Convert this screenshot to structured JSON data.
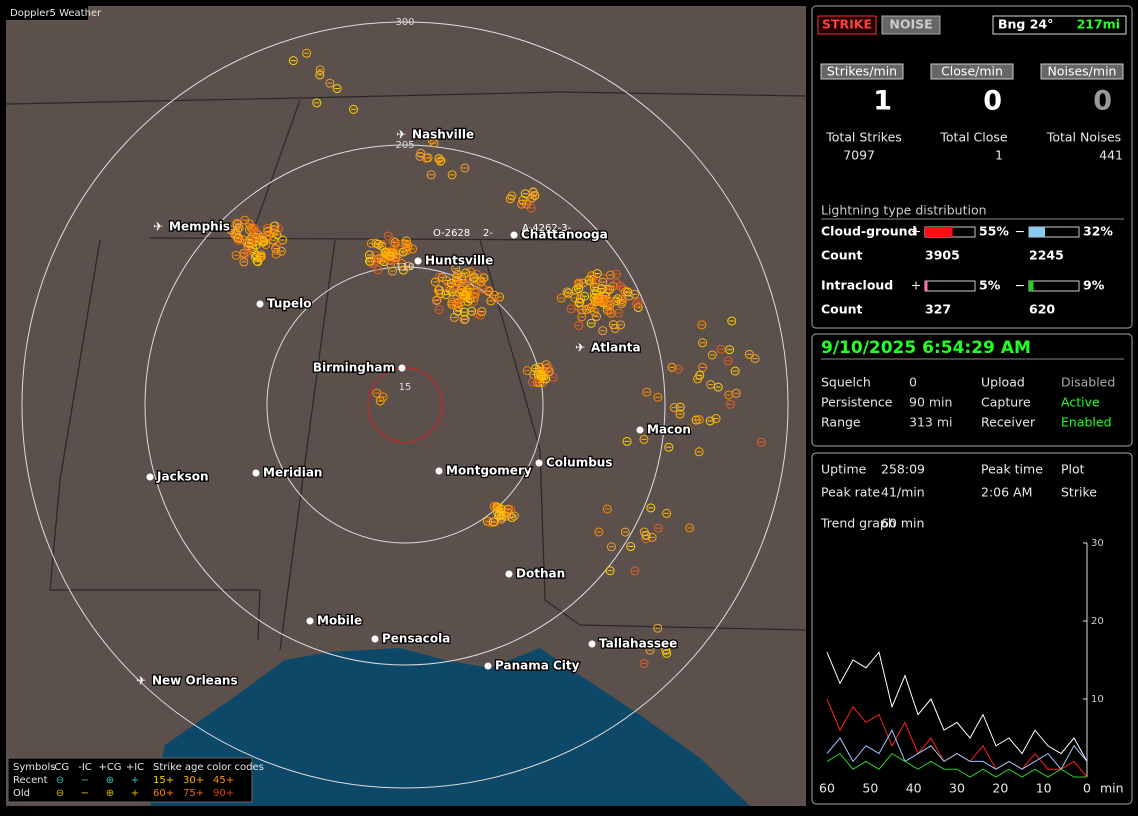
{
  "map": {
    "title": "Doppler5 Weather",
    "range_labels": [
      "300",
      "205",
      "110",
      "15"
    ],
    "cities": [
      "Nashville",
      "Memphis",
      "Chattanooga",
      "Huntsville",
      "Tupelo",
      "Atlanta",
      "Birmingham",
      "Macon",
      "Jackson",
      "Meridian",
      "Montgomery",
      "Columbus",
      "Dothan",
      "Mobile",
      "Pensacola",
      "Tallahassee",
      "Panama City",
      "New Orleans"
    ],
    "tags": [
      "O-2628",
      "2-",
      "A-4262-3-"
    ]
  },
  "legend": {
    "symbols": "Symbols",
    "types": [
      "-CG",
      "-IC",
      "+CG",
      "+IC"
    ],
    "age_title": "Strike age color codes",
    "rows": [
      "Recent",
      "Old"
    ],
    "ages": [
      [
        "15+",
        "30+",
        "45+"
      ],
      [
        "60+",
        "75+",
        "90+"
      ]
    ]
  },
  "status": {
    "modes": [
      "STRIKE",
      "NOISE"
    ],
    "bearing": "Bng 24°",
    "distance": "217mi",
    "rates": [
      {
        "label": "Strikes/min",
        "value": 1
      },
      {
        "label": "Close/min",
        "value": 0
      },
      {
        "label": "Noises/min",
        "value": 0
      }
    ],
    "totals": [
      {
        "label": "Total Strikes",
        "value": 7097
      },
      {
        "label": "Total Close",
        "value": 1
      },
      {
        "label": "Total Noises",
        "value": 441
      }
    ],
    "distribution": {
      "title": "Lightning type distribution",
      "count_label": "Count",
      "rows": [
        {
          "name": "Cloud-ground",
          "pos": {
            "sign": "+",
            "color": "#ff1010",
            "percent": {
              "value": 55,
              "label": "55%"
            },
            "count": 3905
          },
          "neg": {
            "sign": "−",
            "color": "#8ccaf0",
            "percent": {
              "value": 32,
              "label": "32%"
            },
            "count": 2245
          }
        },
        {
          "name": "Intracloud",
          "pos": {
            "sign": "+",
            "color": "#ff70b0",
            "percent": {
              "value": 5,
              "label": "5%"
            },
            "count": 327
          },
          "neg": {
            "sign": "−",
            "color": "#20d020",
            "percent": {
              "value": 9,
              "label": "9%"
            },
            "count": 620
          }
        }
      ]
    }
  },
  "settings": {
    "datetime": "9/10/2025 6:54:29 AM",
    "fields": [
      [
        "Squelch",
        0
      ],
      [
        "Upload",
        "Disabled"
      ],
      [
        "Persistence",
        "90 min"
      ],
      [
        "Capture",
        "Active"
      ],
      [
        "Range",
        "313 mi"
      ],
      [
        "Receiver",
        "Enabled"
      ]
    ]
  },
  "trend": {
    "stats": [
      [
        "Uptime",
        "258:09"
      ],
      [
        "Peak time",
        "2:06 AM"
      ],
      [
        "Plot",
        "Strike"
      ],
      [
        "Peak rate",
        "41/min"
      ]
    ],
    "graph_label": "Trend graph",
    "graph_span": "60 min",
    "x": [
      60,
      57,
      54,
      51,
      48,
      45,
      42,
      39,
      36,
      33,
      30,
      27,
      24,
      21,
      18,
      15,
      12,
      9,
      6,
      3,
      0
    ],
    "xlim": [
      60,
      0
    ],
    "xticks": [
      60,
      50,
      40,
      30,
      20,
      10,
      0
    ],
    "x_unit": "min",
    "ylim": [
      0,
      30
    ],
    "yticks": [
      10,
      20,
      30
    ],
    "series": [
      {
        "color": "#ffffff",
        "values": [
          16,
          12,
          15,
          14,
          16,
          9,
          13,
          8,
          10,
          6,
          7,
          5,
          8,
          4,
          5,
          3,
          6,
          4,
          3,
          5,
          2
        ]
      },
      {
        "color": "#ff2020",
        "values": [
          10,
          6,
          9,
          7,
          8,
          4,
          7,
          3,
          5,
          2,
          3,
          2,
          4,
          1,
          2,
          1,
          3,
          1,
          1,
          2,
          0
        ]
      },
      {
        "color": "#9fc8ff",
        "values": [
          3,
          5,
          2,
          4,
          3,
          6,
          2,
          3,
          4,
          2,
          3,
          2,
          2,
          1,
          2,
          1,
          2,
          3,
          1,
          4,
          2
        ]
      },
      {
        "color": "#30d030",
        "values": [
          2,
          3,
          1,
          2,
          1,
          3,
          2,
          1,
          2,
          1,
          1,
          0,
          1,
          0,
          1,
          0,
          1,
          0,
          1,
          0,
          0
        ]
      }
    ]
  }
}
